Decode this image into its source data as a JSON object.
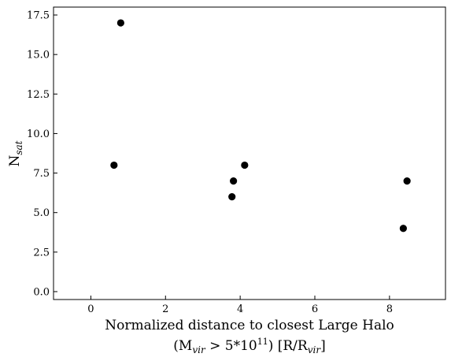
{
  "chart_data": {
    "type": "scatter",
    "title": "",
    "xlabel_line1": "Normalized distance to closest Large Halo",
    "xlabel_line2": {
      "open_paren_M": "(M",
      "sub_vir": "vir",
      "gt_value": " > 5*10",
      "sup_exp": "11",
      "close_units": ") [R/R",
      "sub_vir2": "vir",
      "end": "]"
    },
    "ylabel": {
      "base": "N",
      "sub": "sat"
    },
    "xlim": [
      -1.0,
      9.5
    ],
    "ylim": [
      -0.5,
      18.0
    ],
    "xticks": [
      0,
      2,
      4,
      6,
      8
    ],
    "xtick_labels": [
      "0",
      "2",
      "4",
      "6",
      "8"
    ],
    "yticks": [
      0.0,
      2.5,
      5.0,
      7.5,
      10.0,
      12.5,
      15.0,
      17.5
    ],
    "ytick_labels": [
      "0.0",
      "2.5",
      "5.0",
      "7.5",
      "10.0",
      "12.5",
      "15.0",
      "17.5"
    ],
    "grid": false,
    "marker_color": "#000000",
    "points": [
      {
        "x": 0.8,
        "y": 17
      },
      {
        "x": 0.62,
        "y": 8
      },
      {
        "x": 3.82,
        "y": 7
      },
      {
        "x": 3.78,
        "y": 6
      },
      {
        "x": 4.12,
        "y": 8
      },
      {
        "x": 8.47,
        "y": 7
      },
      {
        "x": 8.37,
        "y": 4
      }
    ]
  }
}
